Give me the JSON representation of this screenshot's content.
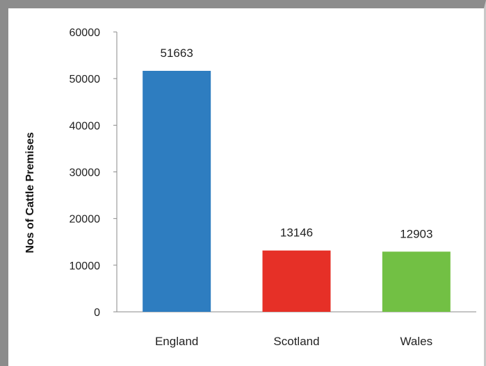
{
  "chart_data": {
    "type": "bar",
    "title": "",
    "xlabel": "",
    "ylabel": "Nos of Cattle Premises",
    "categories": [
      "England",
      "Scotland",
      "Wales"
    ],
    "values": [
      51663,
      13146,
      12903
    ],
    "data_labels": [
      "51663",
      "13146",
      "12903"
    ],
    "colors": [
      "#2e7dc0",
      "#e63027",
      "#72c044"
    ],
    "ylim": [
      0,
      60000
    ],
    "yticks": [
      0,
      10000,
      20000,
      30000,
      40000,
      50000,
      60000
    ],
    "ytick_labels": [
      "0",
      "10000",
      "20000",
      "30000",
      "40000",
      "50000",
      "60000"
    ],
    "grid": false,
    "legend": "none"
  }
}
